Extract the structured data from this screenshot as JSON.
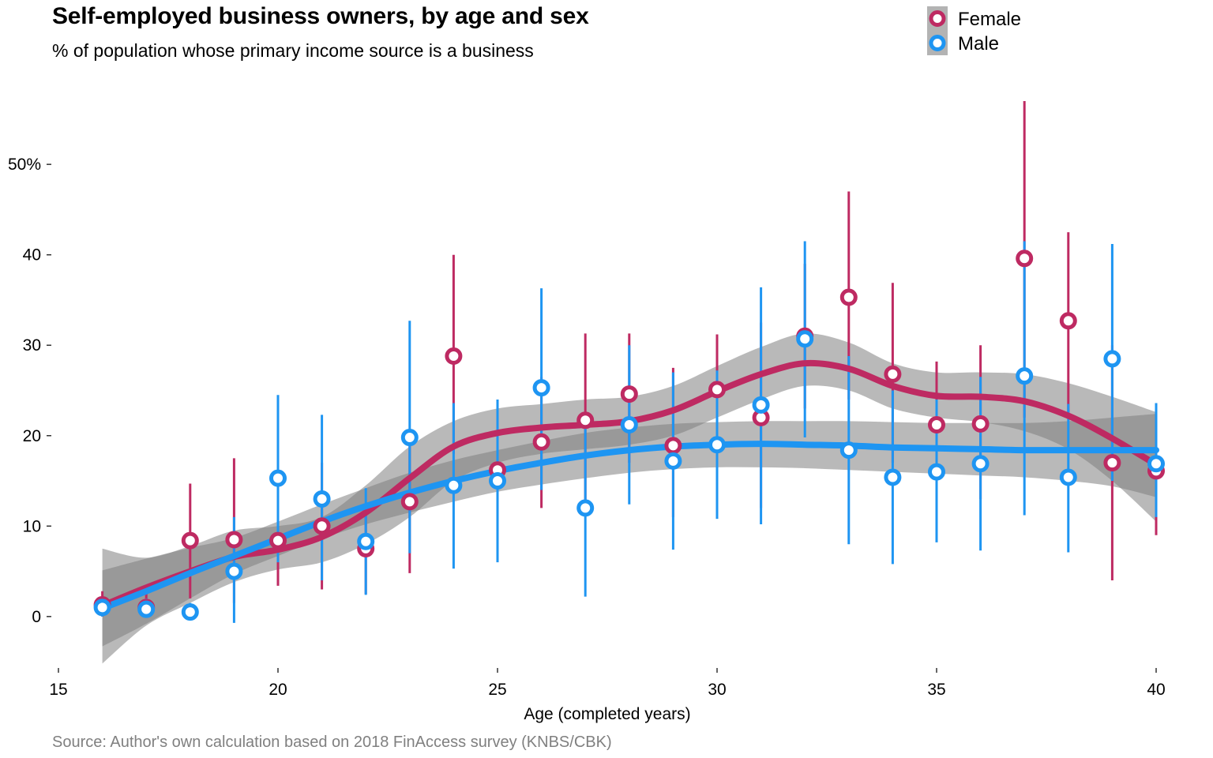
{
  "title": "Self-employed business owners, by age and sex",
  "subtitle": "% of population whose primary income source is a business",
  "caption": "Source: Author's own calculation based on 2018 FinAccess survey (KNBS/CBK)",
  "chart_data": {
    "type": "scatter",
    "xlabel": "Age (completed years)",
    "ylabel": "",
    "xlim": [
      15,
      40
    ],
    "ylim": [
      -7,
      57
    ],
    "x_ticks": [
      15,
      20,
      25,
      30,
      35,
      40
    ],
    "y_ticks": [
      0,
      10,
      20,
      30,
      40,
      50
    ],
    "y_tick_labels": [
      "0",
      "10",
      "20",
      "30",
      "40",
      "50%"
    ],
    "legend": [
      "Female",
      "Male"
    ],
    "legend_position": "top-right",
    "grid": false,
    "series": [
      {
        "name": "Female",
        "color": "#BE2A62",
        "x": [
          16,
          17,
          18,
          19,
          20,
          21,
          22,
          23,
          24,
          25,
          26,
          27,
          28,
          29,
          30,
          31,
          32,
          33,
          34,
          35,
          36,
          37,
          38,
          39,
          40
        ],
        "y": [
          1.3,
          1.0,
          8.4,
          8.5,
          8.4,
          10.0,
          7.5,
          12.7,
          28.8,
          16.2,
          19.3,
          21.7,
          24.6,
          18.9,
          25.1,
          22.0,
          31.0,
          35.3,
          26.8,
          21.2,
          21.3,
          39.6,
          32.7,
          17.0,
          16.1
        ],
        "lower": [
          0.0,
          0.0,
          2.0,
          1.5,
          3.4,
          3.0,
          2.5,
          4.8,
          18.0,
          10.0,
          12.0,
          12.0,
          17.0,
          11.0,
          19.0,
          12.0,
          23.0,
          24.0,
          17.0,
          13.0,
          13.0,
          22.0,
          22.0,
          4.0,
          9.0
        ],
        "upper": [
          2.8,
          2.5,
          14.7,
          17.5,
          13.5,
          17.0,
          12.5,
          20.5,
          40.0,
          22.5,
          26.5,
          31.3,
          31.3,
          27.5,
          31.2,
          32.5,
          39.0,
          47.0,
          36.9,
          28.2,
          30.0,
          57.0,
          42.5,
          30.0,
          23.0
        ],
        "smooth_x": [
          16,
          17,
          18,
          19,
          20,
          21,
          22,
          23,
          24,
          25,
          26,
          27,
          28,
          29,
          30,
          31,
          32,
          33,
          34,
          35,
          36,
          37,
          38,
          39,
          40
        ],
        "smooth_y": [
          1.2,
          3.2,
          5.0,
          6.6,
          7.4,
          8.8,
          11.5,
          15.3,
          18.8,
          20.3,
          20.9,
          21.2,
          21.6,
          22.8,
          24.9,
          26.8,
          28.0,
          27.4,
          25.5,
          24.4,
          24.3,
          23.8,
          22.2,
          19.7,
          16.8
        ],
        "smooth_lower": [
          -5.2,
          -1.0,
          1.5,
          3.8,
          5.2,
          6.0,
          8.0,
          11.0,
          15.0,
          17.0,
          18.0,
          18.5,
          19.0,
          20.0,
          22.0,
          24.0,
          25.5,
          25.0,
          23.0,
          22.0,
          21.5,
          20.5,
          18.5,
          15.0,
          10.5
        ],
        "smooth_upper": [
          7.5,
          6.5,
          7.8,
          9.5,
          10.0,
          11.0,
          14.5,
          18.8,
          21.6,
          23.0,
          23.5,
          24.0,
          24.3,
          25.5,
          27.7,
          29.8,
          31.3,
          30.3,
          28.0,
          27.0,
          27.0,
          26.8,
          25.8,
          24.3,
          22.6
        ]
      },
      {
        "name": "Male",
        "color": "#1E95F2",
        "x": [
          16,
          17,
          18,
          19,
          20,
          21,
          22,
          23,
          24,
          25,
          26,
          27,
          28,
          29,
          30,
          31,
          32,
          33,
          34,
          35,
          36,
          37,
          38,
          39,
          40
        ],
        "y": [
          1.0,
          0.8,
          0.5,
          5.0,
          15.3,
          13.0,
          8.3,
          19.8,
          14.5,
          15.0,
          25.3,
          12.0,
          21.2,
          17.2,
          19.0,
          23.4,
          30.7,
          18.4,
          15.4,
          16.0,
          16.9,
          26.6,
          15.4,
          28.5,
          16.9
        ],
        "lower": [
          0.0,
          0.0,
          0.0,
          -0.7,
          6.0,
          4.0,
          2.4,
          7.0,
          5.3,
          6.0,
          14.0,
          2.2,
          12.4,
          7.4,
          10.8,
          10.2,
          19.8,
          8.0,
          5.8,
          8.2,
          7.3,
          11.2,
          7.1,
          15.0,
          11.0
        ],
        "upper": [
          2.2,
          2.0,
          1.5,
          11.0,
          24.5,
          22.3,
          14.2,
          32.7,
          23.6,
          24.0,
          36.3,
          21.8,
          30.0,
          27.0,
          27.2,
          36.4,
          41.5,
          28.8,
          25.0,
          24.0,
          26.5,
          41.5,
          23.5,
          41.2,
          23.6
        ],
        "smooth_x": [
          16,
          17,
          18,
          19,
          20,
          21,
          22,
          23,
          24,
          25,
          26,
          27,
          28,
          29,
          30,
          31,
          32,
          33,
          34,
          35,
          36,
          37,
          38,
          39,
          40
        ],
        "smooth_y": [
          0.9,
          2.8,
          4.8,
          6.7,
          8.6,
          10.5,
          12.2,
          13.7,
          15.0,
          16.1,
          17.0,
          17.8,
          18.4,
          18.8,
          19.0,
          19.1,
          19.0,
          18.9,
          18.7,
          18.6,
          18.5,
          18.4,
          18.4,
          18.4,
          18.4
        ],
        "smooth_lower": [
          -3.3,
          -0.8,
          2.0,
          4.7,
          6.7,
          8.6,
          10.2,
          11.5,
          12.7,
          13.8,
          14.6,
          15.3,
          15.9,
          16.3,
          16.5,
          16.5,
          16.4,
          16.2,
          16.0,
          15.8,
          15.6,
          15.4,
          15.0,
          14.4,
          13.2
        ],
        "smooth_upper": [
          5.1,
          6.4,
          7.6,
          8.7,
          10.5,
          12.4,
          14.2,
          15.9,
          17.3,
          18.4,
          19.4,
          20.3,
          20.9,
          21.3,
          21.5,
          21.6,
          21.6,
          21.6,
          21.5,
          21.4,
          21.4,
          21.4,
          21.6,
          22.0,
          22.4
        ]
      }
    ]
  }
}
